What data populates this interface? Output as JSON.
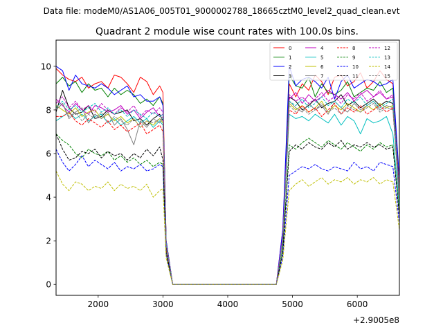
{
  "chart_data": {
    "type": "line",
    "suptitle": "Data file: modeM0/AS1A06_005T01_9000002788_18665cztM0_level2_quad_clean.evt",
    "title": "Quadrant 2 module wise count rates with 100.0s bins.",
    "xlabel": "",
    "ylabel": "",
    "x_offset_text": "+2.9005e8",
    "xlim": [
      1350,
      6650
    ],
    "ylim": [
      -0.5,
      11.2
    ],
    "xticks": [
      2000,
      3000,
      4000,
      5000,
      6000
    ],
    "xtick_labels": [
      "2000",
      "3000",
      "4000",
      "5000",
      "6000"
    ],
    "yticks": [
      0,
      2,
      4,
      6,
      8,
      10
    ],
    "ytick_labels": [
      "0",
      "2",
      "4",
      "6",
      "8",
      "10"
    ],
    "grid": false,
    "legend_placement": "top-right",
    "legend_columns": 4,
    "x": [
      1350,
      1450,
      1550,
      1650,
      1750,
      1850,
      1950,
      2050,
      2150,
      2250,
      2350,
      2450,
      2550,
      2650,
      2750,
      2850,
      2950,
      3000,
      3050,
      3150,
      3250,
      3350,
      3450,
      3550,
      3650,
      3750,
      3850,
      3950,
      4050,
      4150,
      4250,
      4350,
      4450,
      4550,
      4650,
      4750,
      4850,
      4950,
      5050,
      5150,
      5250,
      5350,
      5450,
      5550,
      5650,
      5750,
      5850,
      5950,
      6050,
      6150,
      6250,
      6350,
      6450,
      6550,
      6650
    ],
    "series": [
      {
        "name": "0",
        "color": "#ff0000",
        "dash": "solid",
        "values": [
          9.9,
          9.6,
          9.4,
          9.3,
          9.5,
          9.0,
          9.2,
          9.3,
          9.0,
          9.6,
          9.5,
          9.2,
          8.8,
          9.5,
          9.3,
          8.7,
          9.1,
          8.8,
          2.0,
          0,
          0,
          0,
          0,
          0,
          0,
          0,
          0,
          0,
          0,
          0,
          0,
          0,
          0,
          0,
          0,
          0,
          2.5,
          9.2,
          8.6,
          9.2,
          8.9,
          9.6,
          9.3,
          8.7,
          9.5,
          9.6,
          9.1,
          9.3,
          9.7,
          9.0,
          9.3,
          9.8,
          9.4,
          9.2,
          4.3
        ]
      },
      {
        "name": "1",
        "color": "#008000",
        "dash": "solid",
        "values": [
          9.2,
          9.5,
          9.1,
          9.3,
          8.8,
          9.2,
          8.9,
          9.0,
          8.6,
          9.0,
          8.7,
          8.9,
          8.7,
          8.3,
          8.5,
          8.2,
          8.6,
          8.3,
          2.0,
          0,
          0,
          0,
          0,
          0,
          0,
          0,
          0,
          0,
          0,
          0,
          0,
          0,
          0,
          0,
          0,
          0,
          2.3,
          9.6,
          9.1,
          9.0,
          9.5,
          8.6,
          9.2,
          8.8,
          8.7,
          8.9,
          9.3,
          8.6,
          8.8,
          9.0,
          8.9,
          9.3,
          8.8,
          9.0,
          4.1
        ]
      },
      {
        "name": "2",
        "color": "#0000ff",
        "dash": "solid",
        "values": [
          10.0,
          9.8,
          8.9,
          9.6,
          9.2,
          9.1,
          9.0,
          9.2,
          9.0,
          8.7,
          8.9,
          9.1,
          8.6,
          8.7,
          8.4,
          8.4,
          8.6,
          8.2,
          2.0,
          0,
          0,
          0,
          0,
          0,
          0,
          0,
          0,
          0,
          0,
          0,
          0,
          0,
          0,
          0,
          0,
          0,
          2.5,
          10.0,
          9.1,
          9.4,
          9.5,
          9.3,
          9.0,
          9.5,
          8.5,
          9.3,
          9.6,
          9.0,
          9.2,
          9.4,
          9.3,
          9.1,
          9.2,
          9.4,
          4.8
        ]
      },
      {
        "name": "3",
        "color": "#000000",
        "dash": "solid",
        "values": [
          7.9,
          8.9,
          8.1,
          7.8,
          7.9,
          8.2,
          7.6,
          7.7,
          8.0,
          7.8,
          7.9,
          8.0,
          7.5,
          7.6,
          7.3,
          7.6,
          7.8,
          7.5,
          1.8,
          0,
          0,
          0,
          0,
          0,
          0,
          0,
          0,
          0,
          0,
          0,
          0,
          0,
          0,
          0,
          0,
          0,
          2.0,
          8.6,
          8.4,
          8.0,
          8.2,
          8.5,
          8.1,
          8.3,
          8.4,
          8.7,
          8.2,
          8.4,
          8.1,
          8.3,
          8.5,
          8.2,
          8.4,
          8.3,
          3.9
        ]
      },
      {
        "name": "4",
        "color": "#bf00bf",
        "dash": "solid",
        "values": [
          8.5,
          8.2,
          7.9,
          8.3,
          8.0,
          7.8,
          8.2,
          8.1,
          7.9,
          8.0,
          8.2,
          7.8,
          8.0,
          7.6,
          7.9,
          8.1,
          7.7,
          7.8,
          1.9,
          0,
          0,
          0,
          0,
          0,
          0,
          0,
          0,
          0,
          0,
          0,
          0,
          0,
          0,
          0,
          0,
          0,
          2.2,
          8.5,
          8.8,
          8.3,
          8.7,
          8.4,
          8.6,
          8.9,
          8.7,
          8.5,
          8.8,
          8.4,
          8.7,
          8.9,
          8.6,
          8.8,
          8.5,
          8.6,
          4.0
        ]
      },
      {
        "name": "5",
        "color": "#00bfbf",
        "dash": "solid",
        "values": [
          7.5,
          7.7,
          7.9,
          7.6,
          7.8,
          7.5,
          7.7,
          7.8,
          7.4,
          7.6,
          7.3,
          7.5,
          7.7,
          7.4,
          7.6,
          7.2,
          7.5,
          7.3,
          1.8,
          0,
          0,
          0,
          0,
          0,
          0,
          0,
          0,
          0,
          0,
          0,
          0,
          0,
          0,
          0,
          0,
          0,
          1.9,
          7.8,
          7.6,
          7.7,
          7.5,
          7.8,
          7.6,
          7.4,
          7.8,
          7.3,
          7.7,
          7.5,
          6.9,
          7.6,
          7.4,
          7.5,
          7.7,
          6.9,
          3.5
        ]
      },
      {
        "name": "6",
        "color": "#bfbf00",
        "dash": "solid",
        "values": [
          8.2,
          8.0,
          7.8,
          8.1,
          7.7,
          7.9,
          8.0,
          7.6,
          7.8,
          7.5,
          7.7,
          7.4,
          7.6,
          7.2,
          7.5,
          7.3,
          7.6,
          7.4,
          1.8,
          0,
          0,
          0,
          0,
          0,
          0,
          0,
          0,
          0,
          0,
          0,
          0,
          0,
          0,
          0,
          0,
          0,
          2.0,
          8.3,
          8.0,
          8.2,
          7.9,
          8.1,
          8.4,
          7.9,
          8.2,
          8.0,
          8.3,
          8.1,
          7.9,
          8.2,
          8.0,
          8.3,
          8.1,
          8.2,
          3.8
        ]
      },
      {
        "name": "7",
        "color": "#808080",
        "dash": "solid",
        "values": [
          8.0,
          8.3,
          7.6,
          7.9,
          8.1,
          7.4,
          7.8,
          7.6,
          7.9,
          7.3,
          7.6,
          7.1,
          6.4,
          7.5,
          7.2,
          7.6,
          7.4,
          7.7,
          1.8,
          0,
          0,
          0,
          0,
          0,
          0,
          0,
          0,
          0,
          0,
          0,
          0,
          0,
          0,
          0,
          0,
          0,
          2.1,
          8.4,
          8.1,
          7.9,
          8.3,
          8.0,
          8.2,
          7.8,
          8.4,
          8.1,
          7.9,
          8.3,
          8.0,
          8.2,
          8.4,
          8.0,
          8.2,
          8.1,
          3.9
        ]
      },
      {
        "name": "8",
        "color": "#ff0000",
        "dash": "dashed",
        "values": [
          7.7,
          7.7,
          7.9,
          7.5,
          7.3,
          7.6,
          7.4,
          7.2,
          7.5,
          7.1,
          7.3,
          7.0,
          7.2,
          7.4,
          6.9,
          7.1,
          7.3,
          7.0,
          1.7,
          0,
          0,
          0,
          0,
          0,
          0,
          0,
          0,
          0,
          0,
          0,
          0,
          0,
          0,
          0,
          0,
          0,
          2.0,
          8.0,
          7.8,
          8.2,
          7.9,
          8.1,
          7.7,
          8.0,
          8.3,
          7.8,
          8.1,
          7.9,
          8.2,
          7.8,
          8.0,
          8.2,
          7.9,
          8.1,
          3.8
        ]
      },
      {
        "name": "9",
        "color": "#008000",
        "dash": "dashed",
        "values": [
          6.9,
          6.6,
          6.4,
          6.0,
          5.8,
          6.2,
          6.0,
          5.9,
          6.1,
          5.7,
          5.9,
          5.6,
          5.8,
          5.5,
          5.7,
          5.4,
          5.6,
          5.5,
          1.4,
          0,
          0,
          0,
          0,
          0,
          0,
          0,
          0,
          0,
          0,
          0,
          0,
          0,
          0,
          0,
          0,
          0,
          1.6,
          6.4,
          6.2,
          6.5,
          6.7,
          6.5,
          6.3,
          6.6,
          6.4,
          6.2,
          6.5,
          6.3,
          6.1,
          6.4,
          6.2,
          6.5,
          6.3,
          6.4,
          3.2
        ]
      },
      {
        "name": "10",
        "color": "#0000ff",
        "dash": "dashed",
        "values": [
          6.2,
          5.6,
          5.2,
          5.5,
          5.9,
          5.4,
          5.7,
          5.5,
          5.3,
          5.6,
          5.2,
          5.4,
          5.3,
          5.5,
          5.2,
          5.3,
          5.5,
          5.4,
          1.4,
          0,
          0,
          0,
          0,
          0,
          0,
          0,
          0,
          0,
          0,
          0,
          0,
          0,
          0,
          0,
          0,
          0,
          1.3,
          5.0,
          5.2,
          5.4,
          5.3,
          5.5,
          5.3,
          5.2,
          5.4,
          5.3,
          5.2,
          5.6,
          5.3,
          5.4,
          5.2,
          5.6,
          5.5,
          5.4,
          2.8
        ]
      },
      {
        "name": "11",
        "color": "#000000",
        "dash": "dashed",
        "values": [
          6.9,
          6.2,
          5.7,
          5.8,
          6.1,
          6.0,
          6.2,
          5.8,
          6.1,
          5.9,
          6.0,
          5.7,
          6.0,
          5.8,
          6.2,
          5.9,
          6.3,
          5.7,
          1.5,
          0,
          0,
          0,
          0,
          0,
          0,
          0,
          0,
          0,
          0,
          0,
          0,
          0,
          0,
          0,
          0,
          0,
          1.5,
          6.1,
          6.4,
          6.2,
          6.5,
          6.3,
          6.2,
          6.5,
          6.3,
          6.6,
          6.2,
          6.4,
          6.3,
          6.5,
          6.3,
          6.4,
          6.2,
          6.3,
          3.1
        ]
      },
      {
        "name": "12",
        "color": "#bf00bf",
        "dash": "dashed",
        "values": [
          8.3,
          8.6,
          8.1,
          8.4,
          8.0,
          8.2,
          7.9,
          8.3,
          8.0,
          7.8,
          8.1,
          7.9,
          8.2,
          7.7,
          8.0,
          7.8,
          8.1,
          7.9,
          1.9,
          0,
          0,
          0,
          0,
          0,
          0,
          0,
          0,
          0,
          0,
          0,
          0,
          0,
          0,
          0,
          0,
          0,
          2.2,
          8.7,
          8.4,
          8.6,
          8.3,
          8.5,
          8.8,
          8.4,
          8.6,
          8.3,
          8.7,
          8.5,
          8.8,
          8.4,
          8.6,
          8.9,
          8.5,
          8.7,
          4.1
        ]
      },
      {
        "name": "13",
        "color": "#00bfbf",
        "dash": "dashed",
        "values": [
          8.1,
          8.4,
          8.0,
          8.2,
          7.9,
          8.1,
          8.3,
          7.9,
          8.1,
          7.8,
          8.0,
          7.7,
          8.0,
          7.8,
          7.6,
          7.9,
          7.7,
          7.8,
          1.9,
          0,
          0,
          0,
          0,
          0,
          0,
          0,
          0,
          0,
          0,
          0,
          0,
          0,
          0,
          0,
          0,
          0,
          2.1,
          8.4,
          8.2,
          8.5,
          8.1,
          8.3,
          8.6,
          8.2,
          8.4,
          8.1,
          8.5,
          8.3,
          8.6,
          8.2,
          8.4,
          8.1,
          8.3,
          8.5,
          4.0
        ]
      },
      {
        "name": "14",
        "color": "#bfbf00",
        "dash": "dashed",
        "values": [
          5.2,
          4.6,
          4.3,
          4.7,
          4.6,
          4.3,
          4.5,
          4.4,
          4.7,
          4.3,
          4.6,
          4.4,
          4.5,
          4.3,
          4.6,
          4.0,
          4.3,
          4.4,
          1.2,
          0,
          0,
          0,
          0,
          0,
          0,
          0,
          0,
          0,
          0,
          0,
          0,
          0,
          0,
          0,
          0,
          0,
          1.1,
          4.3,
          4.6,
          4.8,
          4.5,
          4.7,
          4.9,
          4.6,
          4.8,
          4.7,
          4.9,
          4.6,
          4.8,
          4.7,
          4.9,
          4.6,
          4.8,
          4.7,
          2.5
        ]
      },
      {
        "name": "15",
        "color": "#808080",
        "dash": "dashed",
        "values": [
          8.0,
          8.3,
          7.7,
          7.9,
          7.5,
          7.8,
          7.6,
          7.9,
          7.4,
          7.7,
          7.5,
          7.3,
          7.6,
          7.2,
          7.5,
          7.4,
          7.6,
          7.5,
          1.8,
          0,
          0,
          0,
          0,
          0,
          0,
          0,
          0,
          0,
          0,
          0,
          0,
          0,
          0,
          0,
          0,
          0,
          2.0,
          8.2,
          7.9,
          8.1,
          7.8,
          8.0,
          8.3,
          7.9,
          8.1,
          7.8,
          8.2,
          8.0,
          7.9,
          8.1,
          8.3,
          7.9,
          8.1,
          8.0,
          3.9
        ]
      }
    ]
  }
}
